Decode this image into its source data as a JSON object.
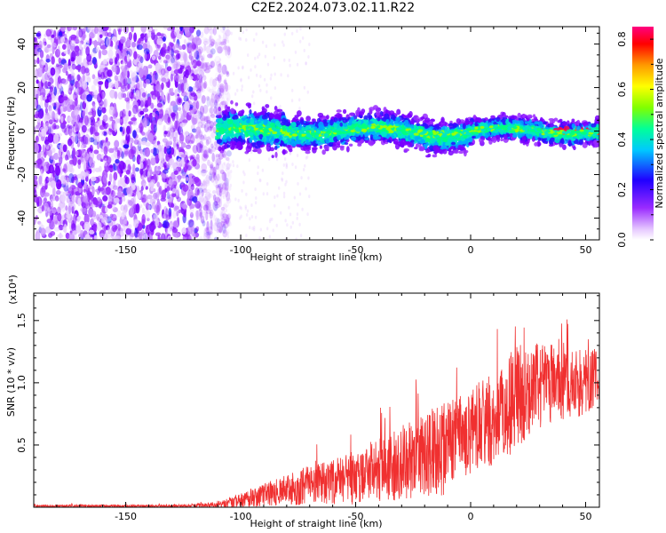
{
  "title": "C2E2.2024.073.02.11.R22",
  "chart_data": [
    {
      "type": "heatmap",
      "title": "",
      "xlabel": "Height of straight line (km)",
      "ylabel": "Frequency (Hz)",
      "xlim": [
        -190,
        56
      ],
      "ylim": [
        -50,
        48
      ],
      "xticks": [
        -150,
        -100,
        -50,
        0,
        50
      ],
      "yticks": [
        -40,
        -20,
        0,
        20,
        40
      ],
      "colorbar": {
        "label": "Normalized spectral amplitude",
        "range": [
          0,
          0.85
        ],
        "ticks": [
          0.0,
          0.2,
          0.4,
          0.6,
          0.8
        ],
        "colors": [
          "#ffffff",
          "#d9a6ff",
          "#8a00ff",
          "#0000ff",
          "#00c8ff",
          "#00ff80",
          "#80ff00",
          "#ffff00",
          "#ff9900",
          "#ff0000",
          "#ff0080"
        ]
      },
      "regions": [
        {
          "x_from": -190,
          "x_to": -110,
          "freq_spread_hz": 48,
          "amplitude": 0.15,
          "description_level": "noise"
        },
        {
          "x_from": -110,
          "x_to": 56,
          "freq_center_hz": 0,
          "freq_halfwidth_hz": 7,
          "amplitude": 0.35
        },
        {
          "x_from": 30,
          "x_to": 56,
          "freq_center_hz": 0,
          "freq_halfwidth_hz": 1,
          "amplitude": 0.8
        }
      ]
    },
    {
      "type": "line",
      "title": "",
      "xlabel": "Height of straight line (km)",
      "ylabel": "SNR (10 * v/v)",
      "y_multiplier_label": "(x10⁴)",
      "xlim": [
        -190,
        56
      ],
      "ylim": [
        0,
        1.72
      ],
      "xticks": [
        -150,
        -100,
        -50,
        0,
        50
      ],
      "yticks": [
        0.5,
        1.0,
        1.5
      ],
      "series": [
        {
          "color": "#f03030",
          "envelope": {
            "x": [
              -190,
              -130,
              -110,
              -100,
              -90,
              -80,
              -70,
              -60,
              -50,
              -40,
              -30,
              -20,
              -12,
              -10,
              0,
              10,
              20,
              30,
              40,
              50,
              56
            ],
            "mean": [
              0.01,
              0.01,
              0.02,
              0.05,
              0.1,
              0.14,
              0.17,
              0.2,
              0.24,
              0.3,
              0.36,
              0.42,
              0.46,
              0.52,
              0.6,
              0.72,
              0.88,
              0.98,
              1.0,
              1.0,
              1.02
            ],
            "amp": [
              0.01,
              0.01,
              0.02,
              0.06,
              0.09,
              0.12,
              0.16,
              0.18,
              0.22,
              0.26,
              0.3,
              0.34,
              0.38,
              0.32,
              0.34,
              0.4,
              0.42,
              0.34,
              0.3,
              0.28,
              0.26
            ]
          }
        }
      ]
    }
  ]
}
